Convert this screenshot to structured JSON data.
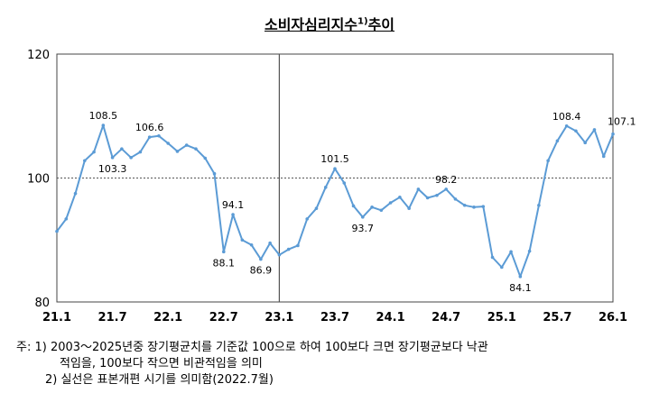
{
  "title": "소비자심리지수",
  "title_sup": "1)",
  "title_suffix": "추이",
  "notes": {
    "line1": "주: 1) 2003～2025년중 장기평균치를 기준값 100으로 하여 100보다 크면 장기평균보다 낙관",
    "line2": "적임을, 100보다 작으면 비관적임을 의미",
    "line3": "2) 실선은 표본개편 시기를 의미함(2022.7월)"
  },
  "colors": {
    "line": "#5b9bd5",
    "reference": "#555555",
    "divider": "#555555"
  },
  "chart_data": {
    "type": "line",
    "ylim": [
      80,
      120
    ],
    "yticks": [
      "80",
      "100",
      "120"
    ],
    "x_tick_labels": [
      "21.1",
      "21.7",
      "22.1",
      "22.7",
      "23.1",
      "23.7",
      "24.1",
      "24.7",
      "25.1",
      "25.7",
      "26.1"
    ],
    "x_tick_index": [
      0,
      6,
      12,
      18,
      24,
      30,
      36,
      42,
      48,
      54,
      60
    ],
    "reference_line": 100,
    "divider_index": 24,
    "grid": false,
    "series": [
      {
        "values": [
          91.4,
          93.4,
          97.5,
          102.8,
          104.2,
          108.5,
          103.3,
          104.7,
          103.3,
          104.2,
          106.6,
          106.8,
          105.6,
          104.3,
          105.3,
          104.7,
          103.2,
          100.7,
          88.1,
          94.1,
          90.0,
          89.2,
          86.9,
          89.5,
          87.6,
          88.5,
          89.1,
          93.4,
          95.1,
          98.5,
          101.5,
          99.2,
          95.5,
          93.7,
          95.3,
          94.8,
          96.0,
          96.9,
          95.1,
          98.2,
          96.8,
          97.2,
          98.2,
          96.6,
          95.6,
          95.3,
          95.4,
          87.2,
          85.6,
          88.1,
          84.1,
          88.2,
          95.6,
          102.8,
          106.0,
          108.4,
          107.6,
          105.7,
          107.8,
          103.5,
          107.1
        ]
      }
    ],
    "data_labels": [
      {
        "index": 5,
        "text": "108.5"
      },
      {
        "index": 6,
        "text": "103.3"
      },
      {
        "index": 10,
        "text": "106.6"
      },
      {
        "index": 18,
        "text": "88.1"
      },
      {
        "index": 19,
        "text": "94.1"
      },
      {
        "index": 22,
        "text": "86.9"
      },
      {
        "index": 30,
        "text": "101.5"
      },
      {
        "index": 33,
        "text": "93.7"
      },
      {
        "index": 42,
        "text": "98.2"
      },
      {
        "index": 50,
        "text": "84.1"
      },
      {
        "index": 55,
        "text": "108.4"
      },
      {
        "index": 60,
        "text": "107.1"
      }
    ]
  }
}
